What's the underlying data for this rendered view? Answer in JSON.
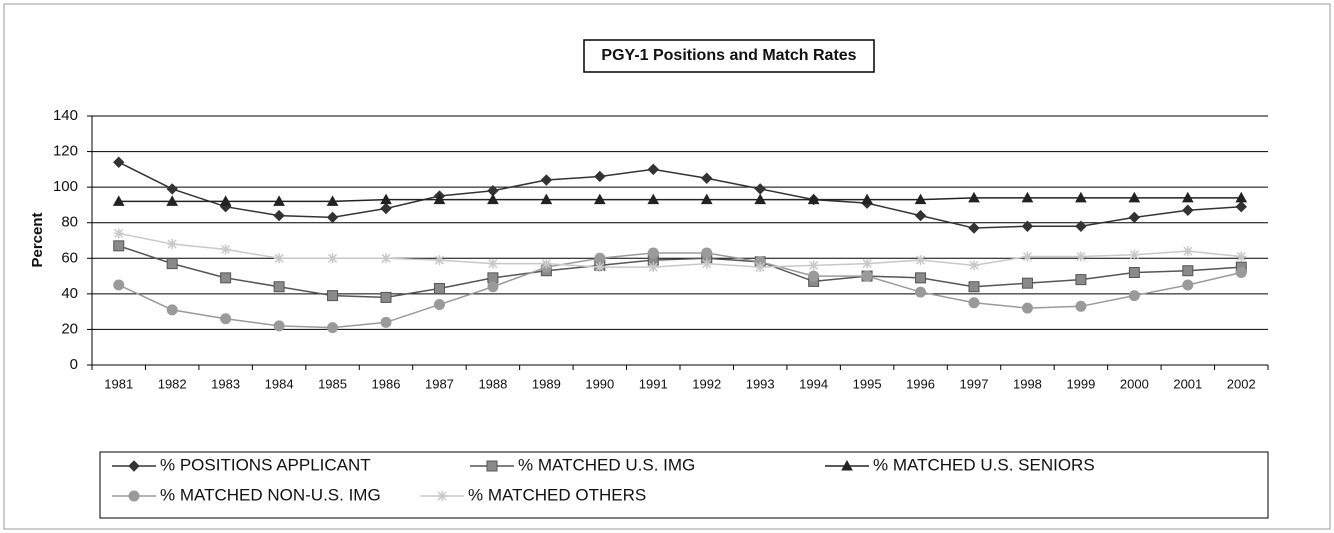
{
  "chart_data": {
    "type": "line",
    "title": "PGY-1 Positions and Match Rates",
    "y_label": "Percent",
    "categories": [
      "1981",
      "1982",
      "1983",
      "1984",
      "1985",
      "1986",
      "1987",
      "1988",
      "1989",
      "1990",
      "1991",
      "1992",
      "1993",
      "1994",
      "1995",
      "1996",
      "1997",
      "1998",
      "1999",
      "2000",
      "2001",
      "2002"
    ],
    "series": [
      {
        "name": "% POSITIONS APPLICANT",
        "color": "#333333",
        "marker": "diamond",
        "values": [
          114,
          99,
          89,
          84,
          83,
          88,
          95,
          98,
          104,
          106,
          110,
          105,
          99,
          93,
          91,
          84,
          77,
          78,
          78,
          83,
          87,
          89
        ]
      },
      {
        "name": "% MATCHED U.S. IMG",
        "color": "#555555",
        "marker": "square",
        "values": [
          67,
          57,
          49,
          44,
          39,
          38,
          43,
          49,
          53,
          56,
          59,
          60,
          58,
          47,
          50,
          49,
          44,
          46,
          48,
          52,
          53,
          55
        ]
      },
      {
        "name": "% MATCHED U.S. SENIORS",
        "color": "#222222",
        "marker": "triangle",
        "values": [
          92,
          92,
          92,
          92,
          92,
          93,
          93,
          93,
          93,
          93,
          93,
          93,
          93,
          93,
          93,
          93,
          94,
          94,
          94,
          94,
          94,
          94
        ]
      },
      {
        "name": "% MATCHED NON-U.S. IMG",
        "color": "#9a9a9a",
        "marker": "circle",
        "values": [
          45,
          31,
          26,
          22,
          21,
          24,
          34,
          44,
          55,
          60,
          63,
          63,
          58,
          50,
          50,
          41,
          35,
          32,
          33,
          39,
          45,
          52
        ]
      },
      {
        "name": "% MATCHED OTHERS",
        "color": "#c8c8c8",
        "marker": "star",
        "values": [
          74,
          68,
          65,
          60,
          60,
          60,
          59,
          57,
          57,
          55,
          55,
          57,
          55,
          56,
          57,
          59,
          56,
          61,
          61,
          62,
          64,
          61
        ]
      }
    ],
    "ylim": [
      0,
      140
    ],
    "yticks": [
      0,
      20,
      40,
      60,
      80,
      100,
      120,
      140
    ],
    "grid": true,
    "legend_position": "bottom"
  }
}
